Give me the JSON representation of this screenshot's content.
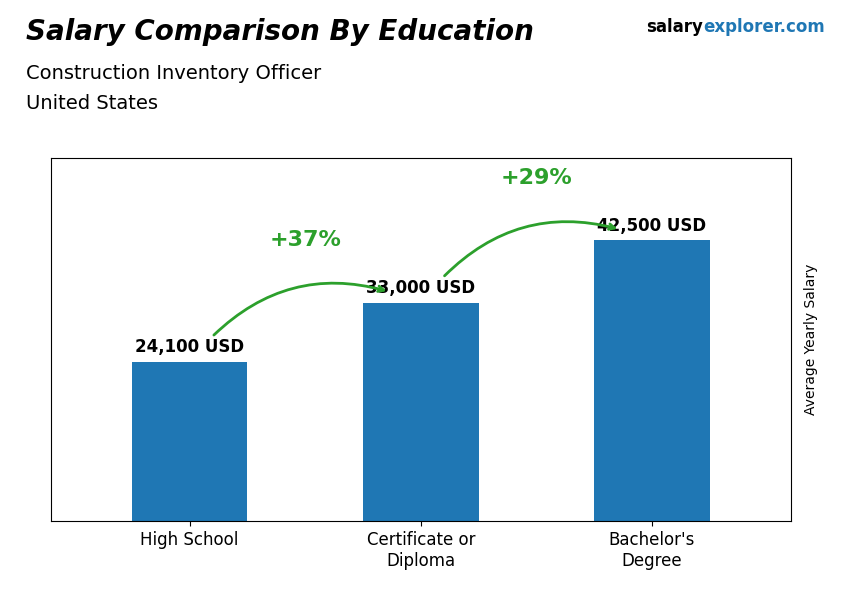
{
  "chart_data": {
    "type": "bar",
    "title": "Salary Comparison By Education",
    "subtitle": [
      "Construction Inventory Officer",
      "United States"
    ],
    "ylabel": "Average Yearly Salary",
    "categories": [
      "High School",
      "Certificate or\nDiploma",
      "Bachelor's\nDegree"
    ],
    "values": [
      24100,
      33000,
      42500
    ],
    "value_labels": [
      "24,100 USD",
      "33,000 USD",
      "42,500 USD"
    ],
    "data_labels": true,
    "ylim": [
      0,
      55000
    ],
    "tick_labels": "x",
    "grid": false,
    "annotations": [
      {
        "text": "salary"
      },
      {
        "text": "explorer.com"
      },
      {
        "text": "+37%",
        "from": "High School",
        "to": "Certificate or\nDiploma"
      },
      {
        "text": "+29%",
        "from": "Certificate or\nDiploma",
        "to": "Bachelor's\nDegree"
      }
    ]
  }
}
